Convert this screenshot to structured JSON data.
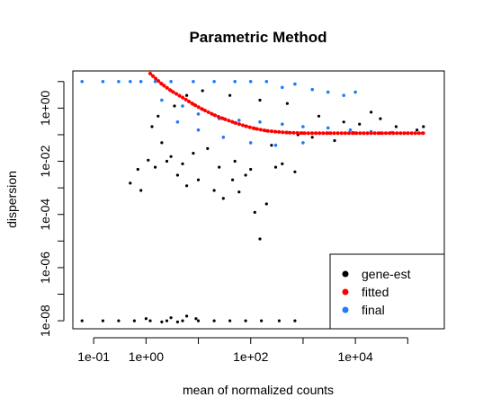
{
  "colors": {
    "gene_est": "#000000",
    "fitted": "#ff0000",
    "final": "#1e7bff",
    "axis": "#000000",
    "background": "#ffffff"
  },
  "chart_data": {
    "type": "scatter",
    "title": "Parametric Method",
    "xlabel": "mean of normalized counts",
    "ylabel": "dispersion",
    "x_scale": "log10",
    "y_scale": "log10",
    "xlim": [
      0.04,
      500000
    ],
    "ylim": [
      5e-09,
      25
    ],
    "grid": false,
    "legend_position": "bottom-right",
    "x_ticks": [
      {
        "value": 0.1,
        "label": "1e-01"
      },
      {
        "value": 1,
        "label": "1e+00"
      },
      {
        "value": 10,
        "label": ""
      },
      {
        "value": 100,
        "label": "1e+02"
      },
      {
        "value": 1000,
        "label": ""
      },
      {
        "value": 10000,
        "label": "1e+04"
      },
      {
        "value": 100000,
        "label": ""
      }
    ],
    "y_ticks": [
      {
        "value": 1e-08,
        "label": "1e-08"
      },
      {
        "value": 1e-07,
        "label": ""
      },
      {
        "value": 1e-06,
        "label": "1e-06"
      },
      {
        "value": 1e-05,
        "label": ""
      },
      {
        "value": 0.0001,
        "label": "1e-04"
      },
      {
        "value": 0.001,
        "label": ""
      },
      {
        "value": 0.01,
        "label": "1e-02"
      },
      {
        "value": 0.1,
        "label": ""
      },
      {
        "value": 1,
        "label": "1e+00"
      },
      {
        "value": 10,
        "label": ""
      }
    ],
    "series": [
      {
        "name": "gene-est",
        "color": "#000000",
        "points": [
          [
            1.1,
            0.011
          ],
          [
            0.5,
            0.0015
          ],
          [
            0.8,
            0.0008
          ],
          [
            1.5,
            0.006
          ],
          [
            2.5,
            0.01
          ],
          [
            4,
            0.003
          ],
          [
            6,
            0.0012
          ],
          [
            10,
            0.002
          ],
          [
            20,
            0.0008
          ],
          [
            30,
            0.0004
          ],
          [
            45,
            0.002
          ],
          [
            60,
            0.0007
          ],
          [
            120,
            0.00012
          ],
          [
            150,
            1.2e-05
          ],
          [
            200,
            0.00025
          ],
          [
            8,
            0.02
          ],
          [
            15,
            0.03
          ],
          [
            50,
            0.01
          ],
          [
            100,
            0.005
          ],
          [
            300,
            0.006
          ],
          [
            700,
            0.004
          ],
          [
            3,
            0.015
          ],
          [
            0.7,
            0.005
          ],
          [
            5,
            0.008
          ],
          [
            25,
            0.006
          ],
          [
            80,
            0.003
          ],
          [
            400,
            0.008
          ],
          [
            2,
            0.05
          ],
          [
            1.3,
            0.2
          ],
          [
            1.7,
            0.5
          ],
          [
            3.5,
            1.2
          ],
          [
            6,
            3
          ],
          [
            12,
            4.5
          ],
          [
            40,
            3
          ],
          [
            150,
            2
          ],
          [
            500,
            1.5
          ],
          [
            2000,
            0.5
          ],
          [
            6000,
            0.3
          ],
          [
            12000,
            0.25
          ],
          [
            20000,
            0.7
          ],
          [
            30000,
            0.4
          ],
          [
            60000,
            0.2
          ],
          [
            150000,
            0.15
          ],
          [
            200000,
            0.2
          ],
          [
            800,
            0.1
          ],
          [
            1500,
            0.08
          ],
          [
            4000,
            0.06
          ],
          [
            9000,
            0.12
          ],
          [
            250,
            0.04
          ],
          [
            0.06,
            1e-08
          ],
          [
            0.15,
            1e-08
          ],
          [
            0.3,
            1e-08
          ],
          [
            0.6,
            1e-08
          ],
          [
            1.2,
            1e-08
          ],
          [
            2.5,
            1e-08
          ],
          [
            5,
            1e-08
          ],
          [
            10,
            1e-08
          ],
          [
            20,
            1e-08
          ],
          [
            40,
            1e-08
          ],
          [
            80,
            1e-08
          ],
          [
            160,
            1e-08
          ],
          [
            350,
            1e-08
          ],
          [
            700,
            1e-08
          ],
          [
            1,
            1.2e-08
          ],
          [
            3,
            1.3e-08
          ],
          [
            6,
            1.5e-08
          ],
          [
            9,
            1.2e-08
          ],
          [
            4,
            9e-09
          ],
          [
            2,
            9e-09
          ]
        ]
      },
      {
        "name": "fitted",
        "color": "#ff0000",
        "points": [
          [
            1.2,
            20
          ],
          [
            2,
            8
          ],
          [
            3,
            4.5
          ],
          [
            5,
            2.5
          ],
          [
            8,
            1.4
          ],
          [
            12,
            0.9
          ],
          [
            20,
            0.55
          ],
          [
            30,
            0.4
          ],
          [
            50,
            0.28
          ],
          [
            80,
            0.21
          ],
          [
            120,
            0.17
          ],
          [
            200,
            0.14
          ],
          [
            300,
            0.13
          ],
          [
            500,
            0.12
          ],
          [
            1000,
            0.115
          ],
          [
            3000,
            0.115
          ],
          [
            10000,
            0.115
          ],
          [
            30000,
            0.115
          ],
          [
            100000,
            0.115
          ],
          [
            200000,
            0.115
          ]
        ]
      },
      {
        "name": "final",
        "color": "#1e7bff",
        "points": [
          [
            0.06,
            10
          ],
          [
            0.15,
            10
          ],
          [
            0.3,
            10
          ],
          [
            0.5,
            10
          ],
          [
            0.8,
            10
          ],
          [
            1.5,
            10
          ],
          [
            3,
            10
          ],
          [
            8,
            10
          ],
          [
            20,
            10
          ],
          [
            50,
            10
          ],
          [
            100,
            10
          ],
          [
            200,
            10
          ],
          [
            2,
            2
          ],
          [
            5,
            1.2
          ],
          [
            10,
            0.6
          ],
          [
            25,
            0.4
          ],
          [
            60,
            0.35
          ],
          [
            150,
            0.3
          ],
          [
            400,
            0.25
          ],
          [
            1000,
            0.2
          ],
          [
            3000,
            0.18
          ],
          [
            8000,
            0.15
          ],
          [
            20000,
            0.13
          ],
          [
            50000,
            0.12
          ],
          [
            4,
            0.3
          ],
          [
            10,
            0.15
          ],
          [
            30,
            0.08
          ],
          [
            100,
            0.05
          ],
          [
            300,
            0.04
          ],
          [
            1000,
            0.05
          ],
          [
            400,
            6
          ],
          [
            700,
            8
          ],
          [
            1500,
            5
          ],
          [
            3000,
            4
          ],
          [
            6000,
            3
          ],
          [
            10000,
            4
          ]
        ]
      }
    ],
    "legend": [
      {
        "label": "gene-est",
        "color": "#000000"
      },
      {
        "label": "fitted",
        "color": "#ff0000"
      },
      {
        "label": "final",
        "color": "#1e7bff"
      }
    ]
  }
}
